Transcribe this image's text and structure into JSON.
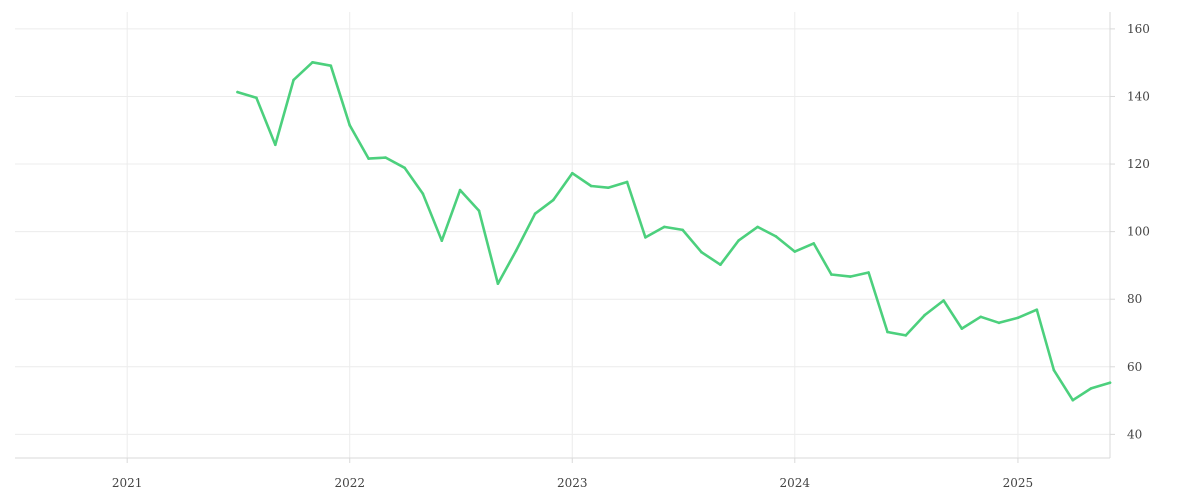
{
  "chart_data": {
    "type": "line",
    "title": "",
    "xlabel": "",
    "ylabel": "",
    "y_axis_side": "right",
    "grid": true,
    "legend": "none",
    "xlim": [
      "2020-07-01",
      "2025-06-01"
    ],
    "ylim": [
      33,
      165
    ],
    "x_ticks": [
      "2021",
      "2022",
      "2023",
      "2024",
      "2025"
    ],
    "y_ticks": [
      40,
      60,
      80,
      100,
      120,
      140,
      160
    ],
    "series": [
      {
        "color": "#4cd07d",
        "x": [
          "2021-07",
          "2021-08",
          "2021-09",
          "2021-10",
          "2021-11",
          "2021-12",
          "2022-01",
          "2022-02",
          "2022-03",
          "2022-04",
          "2022-05",
          "2022-06",
          "2022-07",
          "2022-08",
          "2022-09",
          "2022-10",
          "2022-11",
          "2022-12",
          "2023-01",
          "2023-02",
          "2023-03",
          "2023-04",
          "2023-05",
          "2023-06",
          "2023-07",
          "2023-08",
          "2023-09",
          "2023-10",
          "2023-11",
          "2023-12",
          "2024-01",
          "2024-02",
          "2024-03",
          "2024-04",
          "2024-05",
          "2024-06",
          "2024-07",
          "2024-08",
          "2024-09",
          "2024-10",
          "2024-11",
          "2024-12",
          "2025-01",
          "2025-02",
          "2025-03",
          "2025-04",
          "2025-05",
          "2025-06"
        ],
        "values": [
          141.3,
          139.6,
          125.7,
          144.9,
          150.1,
          149.1,
          131.5,
          121.6,
          121.9,
          118.9,
          111.2,
          97.3,
          112.3,
          106.2,
          84.6,
          94.4,
          105.3,
          109.4,
          117.3,
          113.5,
          113.0,
          114.7,
          98.3,
          101.4,
          100.5,
          93.9,
          90.2,
          97.4,
          101.4,
          98.6,
          94.1,
          96.5,
          87.3,
          86.7,
          87.9,
          70.3,
          69.3,
          75.3,
          79.6,
          71.3,
          74.8,
          73.0,
          74.5,
          76.9,
          59.0,
          50.1,
          53.6,
          55.3
        ]
      }
    ]
  }
}
